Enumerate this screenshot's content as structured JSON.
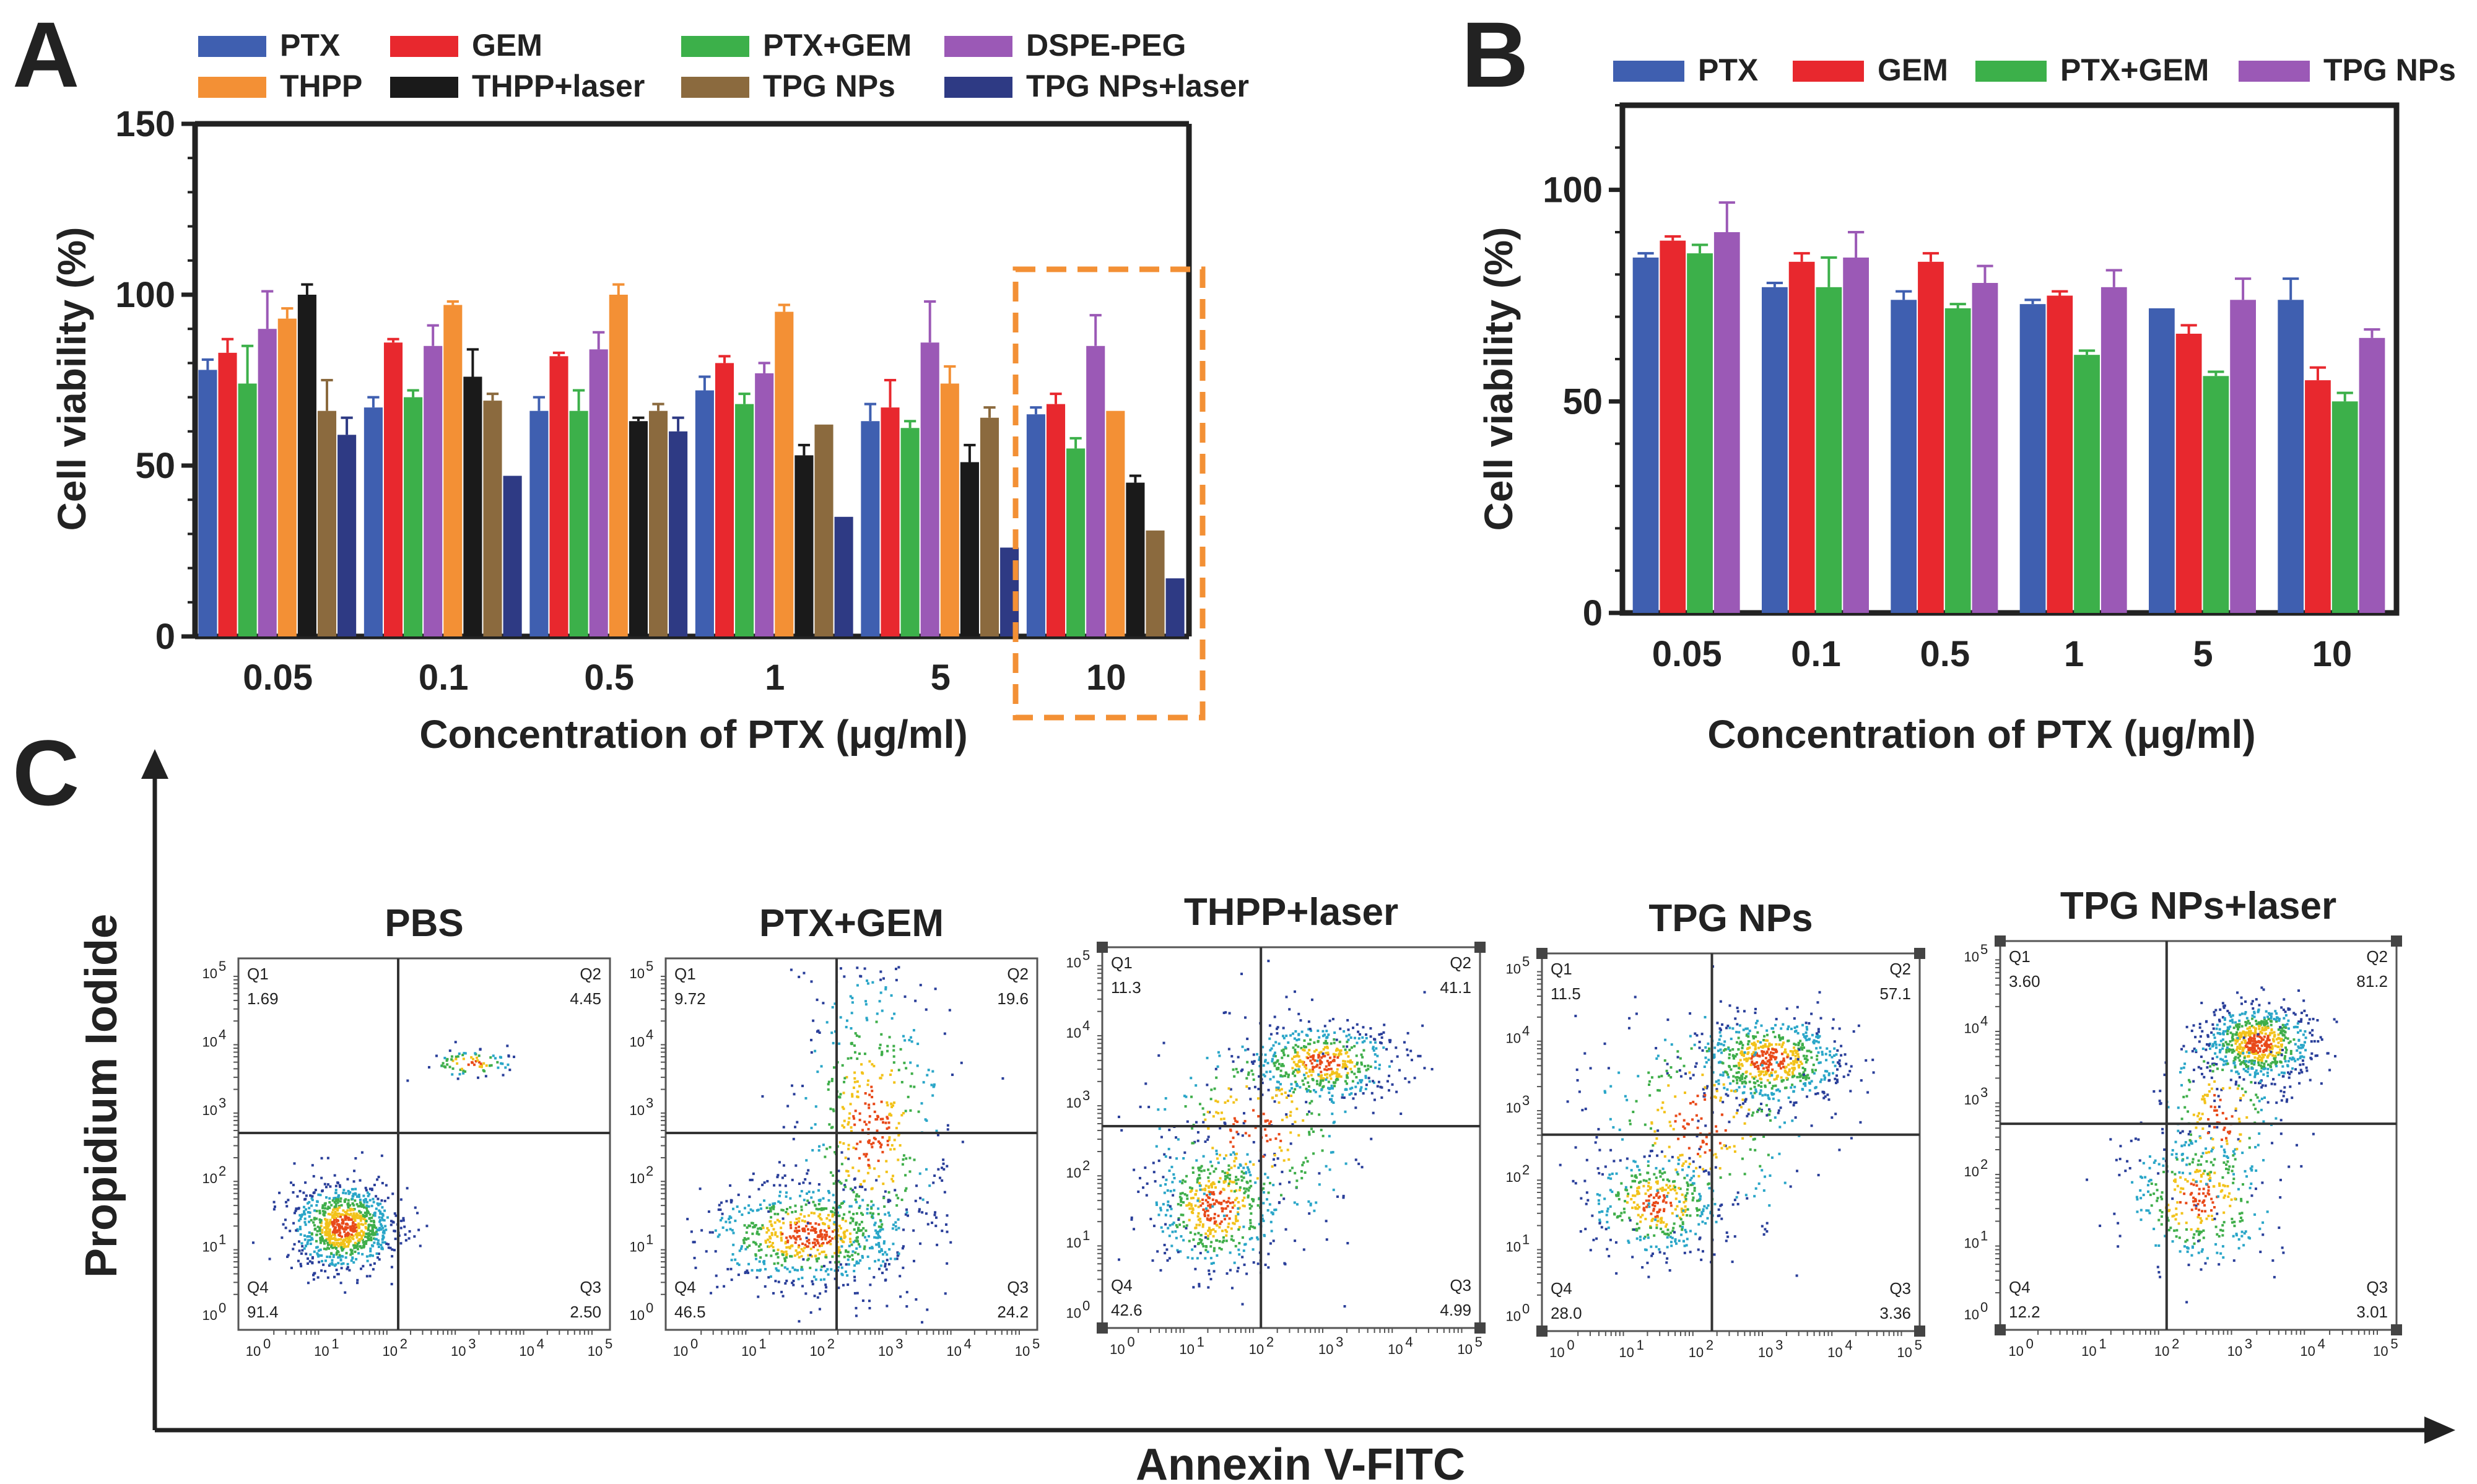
{
  "panels": {
    "A": {
      "letter": "A"
    },
    "B": {
      "letter": "B"
    },
    "C": {
      "letter": "C"
    }
  },
  "chart_data": [
    {
      "id": "A",
      "type": "bar",
      "ylabel": "Cell viability (%)",
      "xlabel": "Concentration of PTX (μg/ml)",
      "categories": [
        "0.05",
        "0.1",
        "0.5",
        "1",
        "5",
        "10"
      ],
      "ylim": [
        0,
        150
      ],
      "yticks": [
        "0",
        "50",
        "100",
        "150"
      ],
      "highlight_category": "10",
      "series": [
        {
          "name": "PTX",
          "color": "#3f5fb0",
          "values": [
            78,
            67,
            66,
            72,
            63,
            65
          ],
          "errors": [
            3,
            3,
            4,
            4,
            5,
            2
          ]
        },
        {
          "name": "GEM",
          "color": "#e8282e",
          "values": [
            83,
            86,
            82,
            80,
            67,
            68
          ],
          "errors": [
            4,
            1,
            1,
            2,
            8,
            3
          ]
        },
        {
          "name": "PTX+GEM",
          "color": "#3cb04a",
          "values": [
            74,
            70,
            66,
            68,
            61,
            55
          ],
          "errors": [
            11,
            2,
            6,
            3,
            2,
            3
          ]
        },
        {
          "name": "DSPE-PEG",
          "color": "#9b59b6",
          "values": [
            90,
            85,
            84,
            77,
            86,
            85
          ],
          "errors": [
            11,
            6,
            5,
            3,
            12,
            9
          ]
        },
        {
          "name": "THPP",
          "color": "#f39035",
          "values": [
            93,
            97,
            100,
            95,
            74,
            66
          ],
          "errors": [
            3,
            1,
            3,
            2,
            5,
            0
          ]
        },
        {
          "name": "THPP+laser",
          "color": "#1a1a1a",
          "values": [
            100,
            76,
            63,
            53,
            51,
            45
          ],
          "errors": [
            3,
            8,
            1,
            3,
            5,
            2
          ]
        },
        {
          "name": "TPG NPs",
          "color": "#8b6a3e",
          "values": [
            66,
            69,
            66,
            62,
            64,
            31
          ],
          "errors": [
            9,
            2,
            2,
            0,
            3,
            0
          ]
        },
        {
          "name": "TPG NPs+laser",
          "color": "#2e3a84",
          "values": [
            59,
            47,
            60,
            35,
            26,
            17
          ],
          "errors": [
            5,
            0,
            4,
            0,
            0,
            0
          ]
        }
      ]
    },
    {
      "id": "B",
      "type": "bar",
      "ylabel": "Cell viability (%)",
      "xlabel": "Concentration of PTX (μg/ml)",
      "categories": [
        "0.05",
        "0.1",
        "0.5",
        "1",
        "5",
        "10"
      ],
      "ylim": [
        0,
        120
      ],
      "yticks": [
        "0",
        "50",
        "100"
      ],
      "series": [
        {
          "name": "PTX",
          "color": "#3f5fb0",
          "values": [
            84,
            77,
            74,
            73,
            72,
            74
          ],
          "errors": [
            1,
            1,
            2,
            1,
            0,
            5
          ]
        },
        {
          "name": "GEM",
          "color": "#e8282e",
          "values": [
            88,
            83,
            83,
            75,
            66,
            55
          ],
          "errors": [
            1,
            2,
            2,
            1,
            2,
            3
          ]
        },
        {
          "name": "PTX+GEM",
          "color": "#3cb04a",
          "values": [
            85,
            77,
            72,
            61,
            56,
            50
          ],
          "errors": [
            2,
            7,
            1,
            1,
            1,
            2
          ]
        },
        {
          "name": "TPG NPs",
          "color": "#9b59b6",
          "values": [
            90,
            84,
            78,
            77,
            74,
            65
          ],
          "errors": [
            7,
            6,
            4,
            4,
            5,
            2
          ]
        }
      ]
    },
    {
      "id": "C",
      "type": "scatter",
      "xlabel": "Annexin V-FITC",
      "ylabel": "Propidium Iodide",
      "axis_ticks": [
        "10",
        "10",
        "10",
        "10",
        "10",
        "10"
      ],
      "axis_exponents": [
        "0",
        "1",
        "2",
        "3",
        "4",
        "5"
      ],
      "plots": [
        {
          "title": "PBS",
          "Q1_label": "Q1",
          "Q1": "1.69",
          "Q2_label": "Q2",
          "Q2": "4.45",
          "Q3_label": "Q3",
          "Q3": "2.50",
          "Q4_label": "Q4",
          "Q4": "91.4"
        },
        {
          "title": "PTX+GEM",
          "Q1_label": "Q1",
          "Q1": "9.72",
          "Q2_label": "Q2",
          "Q2": "19.6",
          "Q3_label": "Q3",
          "Q3": "24.2",
          "Q4_label": "Q4",
          "Q4": "46.5"
        },
        {
          "title": "THPP+laser",
          "Q1_label": "Q1",
          "Q1": "11.3",
          "Q2_label": "Q2",
          "Q2": "41.1",
          "Q3_label": "Q3",
          "Q3": "4.99",
          "Q4_label": "Q4",
          "Q4": "42.6"
        },
        {
          "title": "TPG NPs",
          "Q1_label": "Q1",
          "Q1": "11.5",
          "Q2_label": "Q2",
          "Q2": "57.1",
          "Q3_label": "Q3",
          "Q3": "3.36",
          "Q4_label": "Q4",
          "Q4": "28.0"
        },
        {
          "title": "TPG NPs+laser",
          "Q1_label": "Q1",
          "Q1": "3.60",
          "Q2_label": "Q2",
          "Q2": "81.2",
          "Q3_label": "Q3",
          "Q3": "3.01",
          "Q4_label": "Q4",
          "Q4": "12.2"
        }
      ]
    }
  ]
}
